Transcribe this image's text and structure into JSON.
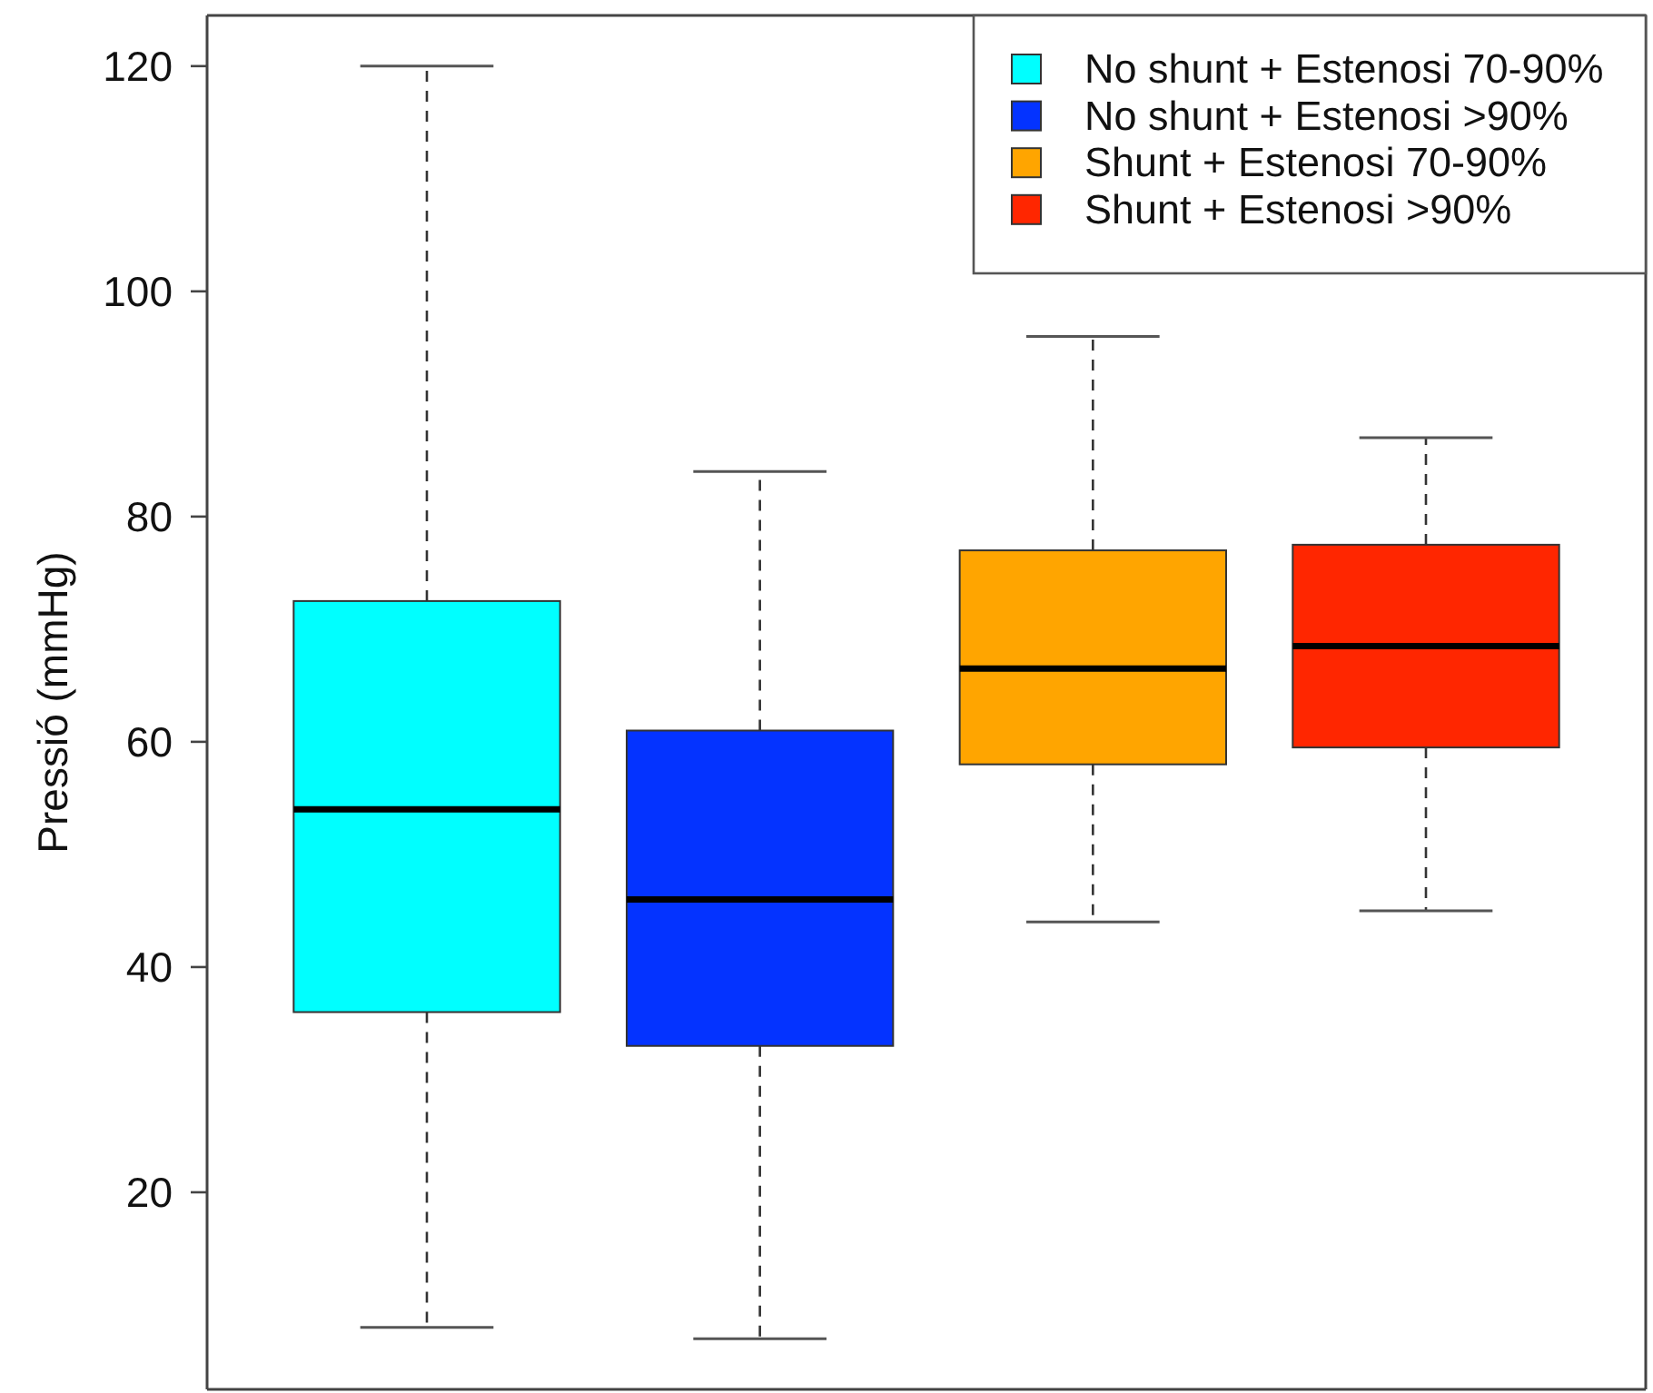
{
  "chart_data": {
    "type": "box",
    "ylabel": "Pressió (mmHg)",
    "categories": [
      null
    ],
    "series": [
      {
        "name": "No shunt + Estenosi 70-90%",
        "color": "#00ffff",
        "boxes": [
          {
            "low": 8,
            "q1": 36,
            "median": 54,
            "q3": 72.5,
            "high": 120
          }
        ]
      },
      {
        "name": "No shunt + Estenosi >90%",
        "color": "#0433ff",
        "boxes": [
          {
            "low": 7,
            "q1": 33,
            "median": 46,
            "q3": 61,
            "high": 84
          }
        ]
      },
      {
        "name": "Shunt + Estenosi 70-90%",
        "color": "#ffa500",
        "boxes": [
          {
            "low": 44,
            "q1": 58,
            "median": 66.5,
            "q3": 77,
            "high": 96
          }
        ]
      },
      {
        "name": "Shunt + Estenosi >90%",
        "color": "#ff2600",
        "boxes": [
          {
            "low": 45,
            "q1": 59.5,
            "median": 68.5,
            "q3": 77.5,
            "high": 87
          }
        ]
      }
    ],
    "ylim": [
      2.5,
      124.5
    ],
    "yticks": [
      20,
      40,
      60,
      80,
      100,
      120
    ],
    "tick_labels": "y",
    "legend": "top right"
  }
}
